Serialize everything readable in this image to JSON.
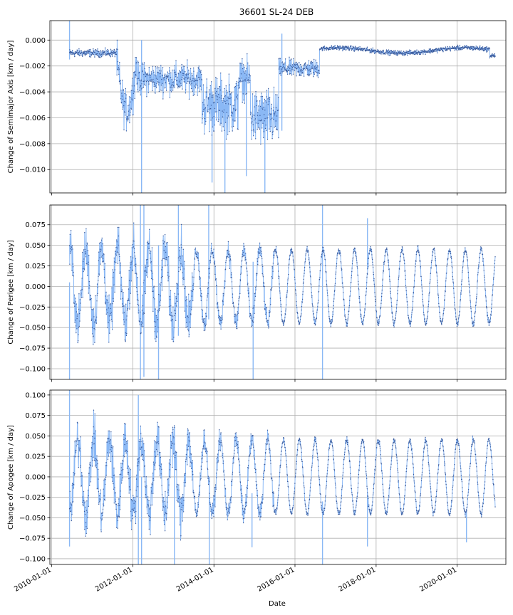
{
  "figure_title": "36601 SL-24 DEB",
  "shared_xlabel": "Date",
  "colors": {
    "line": "#8ab8f5",
    "marker": "#3b5a9a",
    "grid": "#b0b0b0",
    "axes": "#000000"
  },
  "chart_data": [
    {
      "type": "line",
      "title": "36601 SL-24 DEB",
      "xlabel": "",
      "ylabel": "Change of Semimajor Axis [km / day]",
      "x_range": [
        "2009-12-15",
        "2021-03-15"
      ],
      "ylim": [
        -0.0118,
        0.0015
      ],
      "yticks": [
        0.0,
        -0.002,
        -0.004,
        -0.006,
        -0.008,
        -0.01
      ],
      "ytick_labels": [
        "0.000",
        "−0.002",
        "−0.004",
        "−0.006",
        "−0.008",
        "−0.010"
      ],
      "xticks": [
        "2010-01-01",
        "2012-01-01",
        "2014-01-01",
        "2016-01-01",
        "2018-01-01",
        "2020-01-01"
      ],
      "xtick_labels": [],
      "grid": true,
      "series_kind": "semimajor",
      "spikes": [
        {
          "date": "2010-06-10",
          "from": -0.0015,
          "to": 0.0015
        },
        {
          "date": "2012-03-20",
          "from": -0.0118,
          "to": 0.0
        },
        {
          "date": "2013-12-15",
          "from": -0.011,
          "to": -0.004
        },
        {
          "date": "2014-04-10",
          "from": -0.0118,
          "to": -0.005
        },
        {
          "date": "2014-10-20",
          "from": -0.0105,
          "to": -0.003
        },
        {
          "date": "2015-04-05",
          "from": -0.0118,
          "to": -0.006
        },
        {
          "date": "2015-09-05",
          "from": -0.007,
          "to": 0.0005
        }
      ]
    },
    {
      "type": "line",
      "title": "",
      "xlabel": "",
      "ylabel": "Change of Perigee [km / day]",
      "x_range": [
        "2009-12-15",
        "2021-03-15"
      ],
      "ylim": [
        -0.113,
        0.099
      ],
      "yticks": [
        0.075,
        0.05,
        0.025,
        0.0,
        -0.025,
        -0.05,
        -0.075,
        -0.1
      ],
      "ytick_labels": [
        "0.075",
        "0.050",
        "0.025",
        "0.000",
        "−0.025",
        "−0.050",
        "−0.075",
        "−0.100"
      ],
      "xticks": [
        "2010-01-01",
        "2012-01-01",
        "2014-01-01",
        "2016-01-01",
        "2018-01-01",
        "2020-01-01"
      ],
      "xtick_labels": [],
      "grid": true,
      "series_kind": "perigee",
      "spikes": [
        {
          "date": "2010-06-10",
          "from": -0.113,
          "to": 0.005
        },
        {
          "date": "2012-03-10",
          "from": -0.113,
          "to": 0.099
        },
        {
          "date": "2012-04-10",
          "from": -0.11,
          "to": 0.099
        },
        {
          "date": "2012-08-20",
          "from": -0.113,
          "to": 0.05
        },
        {
          "date": "2013-02-15",
          "from": -0.06,
          "to": 0.099
        },
        {
          "date": "2013-11-15",
          "from": -0.04,
          "to": 0.099
        },
        {
          "date": "2014-12-20",
          "from": -0.113,
          "to": 0.03
        },
        {
          "date": "2016-09-05",
          "from": -0.113,
          "to": 0.099
        },
        {
          "date": "2017-10-15",
          "from": 0.02,
          "to": 0.083
        }
      ]
    },
    {
      "type": "line",
      "title": "",
      "xlabel": "Date",
      "ylabel": "Change of Apogee [km / day]",
      "x_range": [
        "2009-12-15",
        "2021-03-15"
      ],
      "ylim": [
        -0.107,
        0.106
      ],
      "yticks": [
        0.1,
        0.075,
        0.05,
        0.025,
        0.0,
        -0.025,
        -0.05,
        -0.075,
        -0.1
      ],
      "ytick_labels": [
        "0.100",
        "0.075",
        "0.050",
        "0.025",
        "0.000",
        "−0.025",
        "−0.050",
        "−0.075",
        "−0.100"
      ],
      "xticks": [
        "2010-01-01",
        "2012-01-01",
        "2014-01-01",
        "2016-01-01",
        "2018-01-01",
        "2020-01-01"
      ],
      "xtick_labels": [
        "2010-01-01",
        "2012-01-01",
        "2014-01-01",
        "2016-01-01",
        "2018-01-01",
        "2020-01-01"
      ],
      "grid": true,
      "series_kind": "apogee",
      "spikes": [
        {
          "date": "2010-06-10",
          "from": -0.085,
          "to": 0.106
        },
        {
          "date": "2012-02-20",
          "from": -0.107,
          "to": 0.1
        },
        {
          "date": "2012-03-20",
          "from": -0.107,
          "to": 0.0
        },
        {
          "date": "2013-01-10",
          "from": -0.107,
          "to": 0.06
        },
        {
          "date": "2013-11-20",
          "from": -0.107,
          "to": 0.0
        },
        {
          "date": "2014-12-10",
          "from": -0.086,
          "to": -0.02
        },
        {
          "date": "2016-09-05",
          "from": -0.107,
          "to": -0.03
        },
        {
          "date": "2017-10-15",
          "from": -0.085,
          "to": -0.02
        },
        {
          "date": "2020-03-25",
          "from": -0.08,
          "to": -0.04
        }
      ]
    }
  ]
}
